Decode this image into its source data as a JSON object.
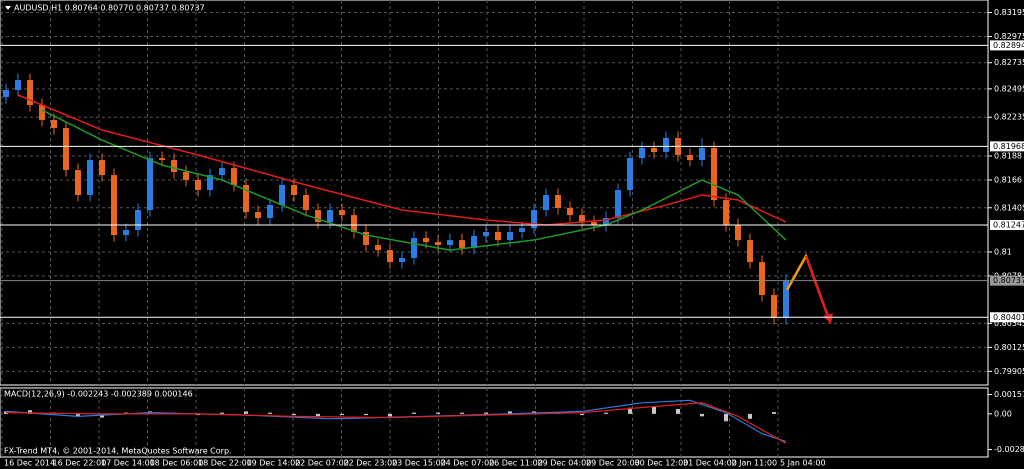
{
  "chart_data": {
    "type": "candlestick",
    "title": "AUDUSD,H1  0.80764 0.80770 0.80737 0.80737",
    "footer": "FX-Trend MT4, © 2001-2014, MetaQuotes Software Corp.",
    "categories": [
      "16 Dec 2014",
      "16 Dec 22:00",
      "17 Dec 14:00",
      "18 Dec 06:00",
      "18 Dec 22:00",
      "19 Dec 14:00",
      "22 Dec 07:00",
      "22 Dec 23:00",
      "23 Dec 15:00",
      "24 Dec 07:00",
      "26 Dec 11:00",
      "29 Dec 04:00",
      "29 Dec 20:00",
      "30 Dec 12:00",
      "31 Dec 04:00",
      "2 Jan 11:00",
      "5 Jan 04:00"
    ],
    "up_color": "#2a7de1",
    "down_color": "#e8661f",
    "ylim": [
      0.7978,
      0.8331
    ],
    "yticks": [
      0.83195,
      0.82975,
      0.82735,
      0.82495,
      0.82235,
      0.8188,
      0.8166,
      0.81405,
      0.81,
      0.8078,
      0.80345,
      0.80125,
      0.79905
    ],
    "grid": true,
    "levels": [
      0.82894,
      0.81968,
      0.81247,
      0.80401
    ],
    "last_price": 0.80737,
    "candles": [
      [
        0.8242,
        0.82545,
        0.8236,
        0.82485
      ],
      [
        0.82485,
        0.82636,
        0.82425,
        0.82576
      ],
      [
        0.82576,
        0.82636,
        0.82287,
        0.82347
      ],
      [
        0.82347,
        0.82407,
        0.8215,
        0.8221
      ],
      [
        0.8221,
        0.8227,
        0.82076,
        0.82136
      ],
      [
        0.82136,
        0.82196,
        0.81691,
        0.81751
      ],
      [
        0.81751,
        0.81811,
        0.81462,
        0.81522
      ],
      [
        0.81522,
        0.81903,
        0.81462,
        0.81843
      ],
      [
        0.81843,
        0.81903,
        0.81645,
        0.81705
      ],
      [
        0.81705,
        0.81765,
        0.81095,
        0.81155
      ],
      [
        0.81155,
        0.81261,
        0.81095,
        0.81201
      ],
      [
        0.81201,
        0.81444,
        0.81141,
        0.81384
      ],
      [
        0.81384,
        0.81921,
        0.81324,
        0.81861
      ],
      [
        0.81861,
        0.81921,
        0.81783,
        0.81843
      ],
      [
        0.81843,
        0.81903,
        0.81673,
        0.81733
      ],
      [
        0.81733,
        0.81793,
        0.816,
        0.8166
      ],
      [
        0.8166,
        0.8172,
        0.81508,
        0.81568
      ],
      [
        0.81568,
        0.81765,
        0.81508,
        0.81705
      ],
      [
        0.81705,
        0.81829,
        0.81645,
        0.81769
      ],
      [
        0.81769,
        0.81829,
        0.81554,
        0.81614
      ],
      [
        0.81614,
        0.81674,
        0.81306,
        0.81366
      ],
      [
        0.81366,
        0.81426,
        0.81251,
        0.81311
      ],
      [
        0.81311,
        0.8149,
        0.81251,
        0.8143
      ],
      [
        0.8143,
        0.81674,
        0.8137,
        0.81614
      ],
      [
        0.81614,
        0.81674,
        0.81462,
        0.81522
      ],
      [
        0.81522,
        0.81582,
        0.81324,
        0.81384
      ],
      [
        0.81384,
        0.81444,
        0.81214,
        0.81274
      ],
      [
        0.81274,
        0.81444,
        0.81214,
        0.81384
      ],
      [
        0.81384,
        0.81444,
        0.81278,
        0.81338
      ],
      [
        0.81338,
        0.81398,
        0.81123,
        0.81183
      ],
      [
        0.81183,
        0.81243,
        0.81003,
        0.81063
      ],
      [
        0.81063,
        0.81123,
        0.80957,
        0.81017
      ],
      [
        0.81017,
        0.81077,
        0.80847,
        0.80907
      ],
      [
        0.80907,
        0.81004,
        0.80847,
        0.80944
      ],
      [
        0.80944,
        0.81188,
        0.80884,
        0.81128
      ],
      [
        0.81128,
        0.81188,
        0.81031,
        0.81091
      ],
      [
        0.81091,
        0.81151,
        0.81003,
        0.81063
      ],
      [
        0.81063,
        0.81169,
        0.81003,
        0.81109
      ],
      [
        0.81109,
        0.81169,
        0.80976,
        0.81036
      ],
      [
        0.81036,
        0.81206,
        0.80976,
        0.81146
      ],
      [
        0.81146,
        0.81243,
        0.81086,
        0.81183
      ],
      [
        0.81183,
        0.81243,
        0.81049,
        0.81109
      ],
      [
        0.81109,
        0.81243,
        0.81049,
        0.81183
      ],
      [
        0.81183,
        0.81279,
        0.81123,
        0.81219
      ],
      [
        0.81219,
        0.81444,
        0.81159,
        0.81384
      ],
      [
        0.81384,
        0.81582,
        0.81324,
        0.81522
      ],
      [
        0.81522,
        0.81582,
        0.81343,
        0.81403
      ],
      [
        0.81403,
        0.81463,
        0.81278,
        0.81338
      ],
      [
        0.81338,
        0.81398,
        0.81214,
        0.81274
      ],
      [
        0.81274,
        0.81334,
        0.81187,
        0.81247
      ],
      [
        0.81247,
        0.81371,
        0.81187,
        0.81311
      ],
      [
        0.81311,
        0.81628,
        0.81251,
        0.81568
      ],
      [
        0.81568,
        0.81921,
        0.81508,
        0.81861
      ],
      [
        0.81861,
        0.82013,
        0.81801,
        0.81953
      ],
      [
        0.81953,
        0.82013,
        0.81856,
        0.81916
      ],
      [
        0.81916,
        0.82105,
        0.81856,
        0.82045
      ],
      [
        0.82045,
        0.82105,
        0.81829,
        0.81889
      ],
      [
        0.81889,
        0.81949,
        0.81783,
        0.81843
      ],
      [
        0.81843,
        0.82045,
        0.81783,
        0.81953
      ],
      [
        0.81953,
        0.82013,
        0.81416,
        0.81476
      ],
      [
        0.81476,
        0.81536,
        0.81187,
        0.81247
      ],
      [
        0.81247,
        0.81307,
        0.81049,
        0.81109
      ],
      [
        0.81109,
        0.81169,
        0.80847,
        0.80907
      ],
      [
        0.80907,
        0.80967,
        0.80545,
        0.80605
      ],
      [
        0.80605,
        0.80665,
        0.80334,
        0.80394
      ],
      [
        0.80394,
        0.80797,
        0.80334,
        0.80737
      ]
    ],
    "lines": [
      {
        "color": "#e11d1d",
        "at": [
          1,
          8,
          16,
          25,
          33,
          40,
          45,
          50,
          55,
          58,
          61,
          65
        ],
        "values": [
          0.82439,
          0.82118,
          0.81889,
          0.81614,
          0.81384,
          0.81293,
          0.81247,
          0.81293,
          0.8143,
          0.81522,
          0.81476,
          0.81274
        ]
      },
      {
        "color": "#1f9a2a",
        "at": [
          3,
          8,
          13,
          18,
          25,
          30,
          37,
          44,
          50,
          53,
          58,
          61,
          65
        ],
        "values": [
          0.82301,
          0.82026,
          0.81797,
          0.8166,
          0.81338,
          0.81155,
          0.81017,
          0.81109,
          0.81247,
          0.81384,
          0.8166,
          0.81522,
          0.81109
        ]
      }
    ],
    "macd": {
      "title": "MACD(12,26,9) -0.002243 -0.002389 0.000146",
      "ylim": [
        -0.0035,
        0.0021
      ],
      "yticks": [
        0.00157,
        {
          "value": 0,
          "label": "0.00"
        },
        -0.002898
      ],
      "histogram_color": "#c8c8c8",
      "histogram": [
        0.0002,
        0.0003,
        0.0001,
        -0.0002,
        -0.0003,
        0.0001,
        0.0002,
        0.0001,
        -0.0001,
        0.0001,
        0.0002,
        0.0001,
        -0.0001,
        -0.0002,
        -0.0001,
        -0.0001,
        -0.0002,
        0.0001,
        0.0001,
        0.0001,
        0.0001,
        0.0002,
        0.0002,
        0.0001,
        -0.0001,
        0.0001,
        0.0005,
        0.0006,
        0.0004,
        -0.0002,
        -0.0006,
        -0.0004,
        0.000146
      ],
      "lines": [
        {
          "color": "#2a7de1",
          "at": [
            0,
            6,
            12,
            20,
            27,
            35,
            42,
            48,
            53,
            57,
            60,
            63,
            65
          ],
          "values": [
            0.0002,
            -0.0002,
            0.0001,
            -0.0001,
            -0.0004,
            -0.0002,
            0,
            0.0002,
            0.0009,
            0.0011,
            0.0001,
            -0.0016,
            -0.002243
          ]
        },
        {
          "color": "#e11d1d",
          "at": [
            0,
            8,
            16,
            24,
            32,
            40,
            48,
            54,
            58,
            61,
            65
          ],
          "values": [
            0.0001,
            0,
            0,
            -0.0002,
            -0.0003,
            -0.0001,
            0.0001,
            0.0006,
            0.0009,
            -0.0002,
            -0.002389
          ]
        }
      ]
    }
  }
}
